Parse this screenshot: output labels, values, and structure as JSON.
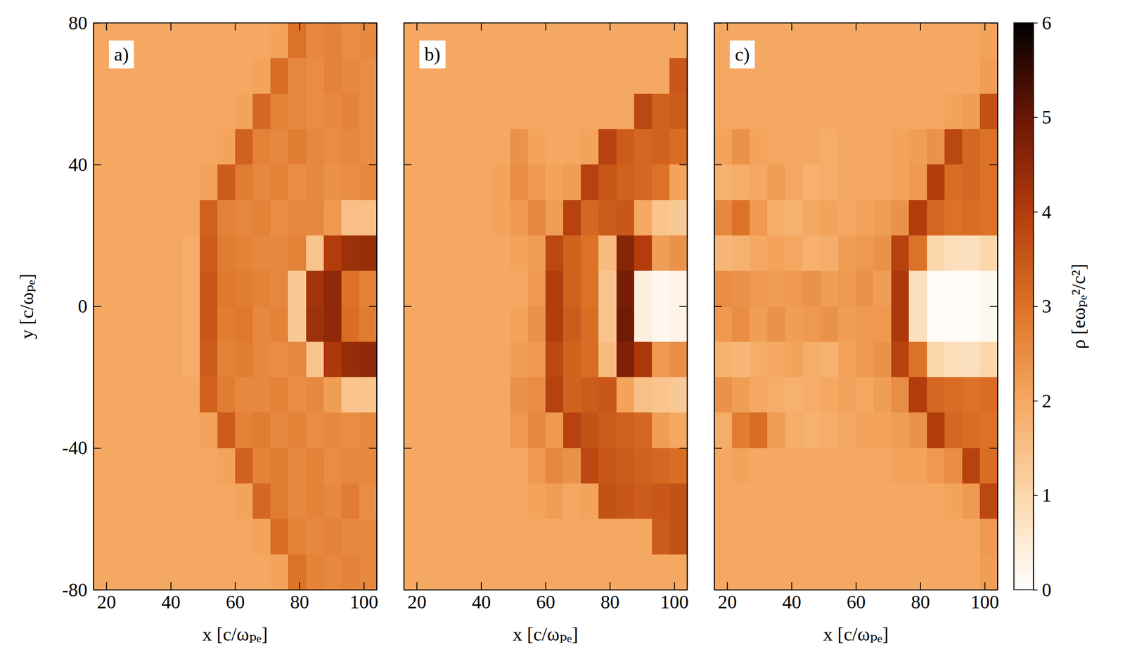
{
  "chart_data": [
    {
      "type": "heatmap",
      "title": "a)",
      "xlabel": "x [c/ωₚₑ]",
      "ylabel": "y [c/ωₚₑ]",
      "xlim": [
        16,
        104
      ],
      "ylim": [
        -80,
        80
      ],
      "xticks": [
        20,
        40,
        60,
        80,
        100
      ],
      "yticks": [
        -80,
        -40,
        0,
        40,
        80
      ],
      "x": [
        18.75,
        24.25,
        29.75,
        35.25,
        40.75,
        46.25,
        51.75,
        57.25,
        62.75,
        68.25,
        73.75,
        79.25,
        84.75,
        90.25,
        95.75,
        101.25
      ],
      "y": [
        75,
        65,
        55,
        45,
        35,
        25,
        15,
        5,
        -5,
        -15,
        -25,
        -35,
        -45,
        -55,
        -65,
        -75
      ],
      "values": [
        [
          2.0,
          2.0,
          2.0,
          2.0,
          2.0,
          2.0,
          2.0,
          2.0,
          2.0,
          2.0,
          2.1,
          3.0,
          2.6,
          2.7,
          2.5,
          2.6
        ],
        [
          2.0,
          2.0,
          2.0,
          2.0,
          2.0,
          2.0,
          2.0,
          2.0,
          2.0,
          2.1,
          3.1,
          2.6,
          2.5,
          2.7,
          2.6,
          2.5
        ],
        [
          2.0,
          2.0,
          2.0,
          2.0,
          2.0,
          2.0,
          2.0,
          2.0,
          2.1,
          3.2,
          2.7,
          2.6,
          2.5,
          2.6,
          2.7,
          2.5
        ],
        [
          2.0,
          2.0,
          2.0,
          2.0,
          2.0,
          2.0,
          2.0,
          2.1,
          3.3,
          2.7,
          2.6,
          2.8,
          2.6,
          2.5,
          2.6,
          2.5
        ],
        [
          2.0,
          2.0,
          2.0,
          2.0,
          2.0,
          2.0,
          2.1,
          3.4,
          2.8,
          2.6,
          2.7,
          2.5,
          2.6,
          2.4,
          2.5,
          2.6
        ],
        [
          2.0,
          2.0,
          2.0,
          2.0,
          2.0,
          2.0,
          3.3,
          2.7,
          2.6,
          2.7,
          2.5,
          2.6,
          2.6,
          2.3,
          1.5,
          1.5
        ],
        [
          2.0,
          2.0,
          2.0,
          2.0,
          2.0,
          1.9,
          3.4,
          2.8,
          2.7,
          2.6,
          2.6,
          2.7,
          1.4,
          4.0,
          4.3,
          4.4
        ],
        [
          2.0,
          2.0,
          2.0,
          2.0,
          2.0,
          1.9,
          3.5,
          2.9,
          2.8,
          2.7,
          2.6,
          1.3,
          4.2,
          4.5,
          3.0,
          2.7
        ],
        [
          2.0,
          2.0,
          2.0,
          2.0,
          2.0,
          1.9,
          3.5,
          2.8,
          2.9,
          2.6,
          2.7,
          1.3,
          4.3,
          4.5,
          3.1,
          2.8
        ],
        [
          2.0,
          2.0,
          2.0,
          2.0,
          2.0,
          1.9,
          3.4,
          2.7,
          2.8,
          2.6,
          2.5,
          2.6,
          1.4,
          4.1,
          4.4,
          4.5
        ],
        [
          2.0,
          2.0,
          2.0,
          2.0,
          2.0,
          2.0,
          3.3,
          2.8,
          2.6,
          2.6,
          2.7,
          2.5,
          2.6,
          2.2,
          1.4,
          1.4
        ],
        [
          2.0,
          2.0,
          2.0,
          2.0,
          2.0,
          2.0,
          2.1,
          3.4,
          2.7,
          2.8,
          2.6,
          2.7,
          2.5,
          2.6,
          2.5,
          2.6
        ],
        [
          2.0,
          2.0,
          2.0,
          2.0,
          2.0,
          2.0,
          2.0,
          2.1,
          3.3,
          2.7,
          2.8,
          2.6,
          2.7,
          2.5,
          2.6,
          2.6
        ],
        [
          2.0,
          2.0,
          2.0,
          2.0,
          2.0,
          2.0,
          2.0,
          2.0,
          2.1,
          3.2,
          2.8,
          2.6,
          2.7,
          2.6,
          2.8,
          2.5
        ],
        [
          2.0,
          2.0,
          2.0,
          2.0,
          2.0,
          2.0,
          2.0,
          2.0,
          2.0,
          2.1,
          3.1,
          2.7,
          2.6,
          2.7,
          2.6,
          2.6
        ],
        [
          2.0,
          2.0,
          2.0,
          2.0,
          2.0,
          2.0,
          2.0,
          2.0,
          2.0,
          2.0,
          2.1,
          3.0,
          2.7,
          2.6,
          2.7,
          2.6
        ]
      ]
    },
    {
      "type": "heatmap",
      "title": "b)",
      "xlabel": "x [c/ωₚₑ]",
      "tick_labels": "x",
      "xlim": [
        16,
        104
      ],
      "ylim": [
        -80,
        80
      ],
      "xticks": [
        20,
        40,
        60,
        80,
        100
      ],
      "yticks": [
        -80,
        -40,
        0,
        40,
        80
      ],
      "x": [
        18.75,
        24.25,
        29.75,
        35.25,
        40.75,
        46.25,
        51.75,
        57.25,
        62.75,
        68.25,
        73.75,
        79.25,
        84.75,
        90.25,
        95.75,
        101.25
      ],
      "y": [
        75,
        65,
        55,
        45,
        35,
        25,
        15,
        5,
        -5,
        -15,
        -25,
        -35,
        -45,
        -55,
        -65,
        -75
      ],
      "values": [
        [
          2.0,
          2.0,
          2.0,
          2.0,
          2.0,
          2.0,
          2.0,
          2.0,
          2.0,
          2.0,
          2.0,
          2.0,
          2.0,
          2.0,
          2.0,
          2.0
        ],
        [
          2.0,
          2.0,
          2.0,
          2.0,
          2.0,
          2.0,
          2.0,
          2.0,
          2.0,
          2.0,
          2.0,
          2.0,
          2.0,
          2.0,
          2.0,
          3.5
        ],
        [
          2.0,
          2.0,
          2.0,
          2.0,
          2.0,
          2.0,
          2.0,
          2.0,
          2.0,
          2.0,
          2.0,
          2.0,
          2.0,
          3.8,
          3.3,
          3.4
        ],
        [
          2.0,
          2.0,
          2.0,
          2.0,
          2.0,
          2.0,
          2.4,
          2.1,
          2.0,
          2.0,
          2.1,
          3.9,
          3.4,
          3.2,
          3.3,
          3.1
        ],
        [
          2.0,
          2.0,
          2.0,
          2.0,
          2.0,
          2.1,
          2.5,
          2.3,
          2.1,
          2.2,
          3.9,
          3.5,
          3.3,
          3.2,
          3.0,
          2.1
        ],
        [
          2.0,
          2.0,
          2.0,
          2.0,
          2.0,
          2.1,
          2.3,
          2.6,
          2.2,
          3.9,
          3.2,
          3.4,
          3.5,
          2.0,
          1.4,
          1.3
        ],
        [
          2.0,
          2.0,
          2.0,
          2.0,
          2.0,
          2.0,
          2.1,
          2.2,
          3.8,
          3.3,
          3.0,
          1.6,
          4.6,
          4.0,
          2.2,
          2.4
        ],
        [
          2.0,
          2.0,
          2.0,
          2.0,
          2.0,
          2.0,
          2.0,
          2.3,
          4.0,
          3.3,
          3.0,
          1.4,
          4.8,
          0.4,
          0.2,
          0.3
        ],
        [
          2.0,
          2.0,
          2.0,
          2.0,
          2.0,
          2.0,
          2.1,
          2.4,
          4.0,
          3.4,
          3.1,
          1.4,
          4.9,
          0.4,
          0.2,
          0.3
        ],
        [
          2.0,
          2.0,
          2.0,
          2.0,
          2.0,
          2.0,
          2.2,
          2.3,
          3.8,
          3.3,
          3.1,
          1.6,
          4.7,
          4.1,
          2.3,
          2.5
        ],
        [
          2.0,
          2.0,
          2.0,
          2.0,
          2.0,
          2.0,
          2.4,
          2.5,
          3.9,
          3.3,
          3.4,
          3.5,
          2.1,
          1.5,
          1.4,
          1.3
        ],
        [
          2.0,
          2.0,
          2.0,
          2.0,
          2.0,
          2.0,
          2.3,
          2.6,
          2.3,
          3.9,
          3.6,
          3.4,
          3.3,
          3.2,
          2.2,
          2.0
        ],
        [
          2.0,
          2.0,
          2.0,
          2.0,
          2.0,
          2.0,
          2.0,
          2.3,
          2.6,
          2.4,
          3.8,
          3.5,
          3.4,
          3.3,
          3.2,
          3.1
        ],
        [
          2.0,
          2.0,
          2.0,
          2.0,
          2.0,
          2.0,
          2.0,
          2.1,
          2.2,
          2.0,
          2.1,
          3.6,
          3.5,
          3.4,
          3.5,
          3.6
        ],
        [
          2.0,
          2.0,
          2.0,
          2.0,
          2.0,
          2.0,
          2.0,
          2.0,
          2.0,
          2.0,
          2.0,
          2.0,
          2.0,
          2.0,
          3.4,
          3.6
        ],
        [
          2.0,
          2.0,
          2.0,
          2.0,
          2.0,
          2.0,
          2.0,
          2.0,
          2.0,
          2.0,
          2.0,
          2.0,
          2.0,
          2.0,
          2.0,
          2.0
        ]
      ]
    },
    {
      "type": "heatmap",
      "title": "c)",
      "xlabel": "x [c/ωₚₑ]",
      "tick_labels": "x",
      "xlim": [
        16,
        104
      ],
      "ylim": [
        -80,
        80
      ],
      "xticks": [
        20,
        40,
        60,
        80,
        100
      ],
      "yticks": [
        -80,
        -40,
        0,
        40,
        80
      ],
      "x": [
        18.75,
        24.25,
        29.75,
        35.25,
        40.75,
        46.25,
        51.75,
        57.25,
        62.75,
        68.25,
        73.75,
        79.25,
        84.75,
        90.25,
        95.75,
        101.25
      ],
      "y": [
        75,
        65,
        55,
        45,
        35,
        25,
        15,
        5,
        -5,
        -15,
        -25,
        -35,
        -45,
        -55,
        -65,
        -75
      ],
      "values": [
        [
          2.0,
          2.0,
          2.0,
          2.0,
          2.0,
          2.0,
          2.0,
          2.0,
          2.0,
          2.0,
          2.0,
          2.0,
          2.0,
          2.0,
          2.0,
          2.1
        ],
        [
          2.0,
          2.0,
          2.0,
          2.0,
          2.0,
          2.0,
          2.0,
          2.0,
          2.0,
          2.0,
          2.0,
          2.0,
          2.0,
          2.0,
          2.0,
          2.2
        ],
        [
          2.0,
          2.0,
          2.0,
          2.0,
          2.0,
          2.0,
          2.0,
          2.0,
          2.0,
          2.0,
          2.0,
          2.0,
          2.0,
          2.1,
          2.2,
          3.6
        ],
        [
          2.1,
          2.4,
          2.1,
          2.0,
          2.0,
          2.0,
          1.9,
          2.0,
          2.0,
          2.0,
          2.1,
          2.2,
          2.4,
          3.8,
          3.2,
          3.0
        ],
        [
          1.8,
          1.9,
          2.0,
          2.2,
          2.0,
          1.8,
          1.9,
          2.0,
          2.0,
          2.0,
          2.1,
          2.3,
          4.0,
          3.1,
          3.2,
          3.0
        ],
        [
          2.6,
          3.0,
          2.3,
          1.9,
          1.8,
          2.0,
          2.1,
          2.0,
          2.1,
          2.2,
          2.4,
          4.0,
          3.2,
          3.0,
          3.1,
          3.0
        ],
        [
          1.7,
          1.8,
          2.0,
          2.1,
          2.0,
          1.8,
          1.9,
          2.2,
          2.3,
          2.4,
          3.9,
          3.0,
          1.0,
          0.8,
          0.8,
          1.0
        ],
        [
          2.5,
          2.4,
          2.3,
          2.2,
          2.3,
          2.4,
          2.2,
          2.3,
          2.4,
          2.2,
          4.1,
          0.8,
          0.1,
          0.1,
          0.1,
          0.2
        ],
        [
          2.3,
          2.5,
          2.2,
          2.4,
          2.2,
          2.3,
          2.4,
          2.2,
          2.3,
          2.3,
          4.1,
          0.8,
          0.1,
          0.1,
          0.1,
          0.2
        ],
        [
          1.8,
          1.7,
          1.9,
          2.0,
          2.1,
          1.9,
          1.8,
          2.1,
          2.3,
          2.4,
          3.9,
          3.0,
          1.0,
          0.8,
          0.8,
          1.0
        ],
        [
          2.4,
          2.2,
          2.0,
          1.9,
          1.8,
          1.9,
          2.0,
          2.1,
          2.0,
          2.2,
          2.5,
          4.0,
          3.2,
          3.1,
          3.0,
          3.1
        ],
        [
          1.9,
          2.8,
          3.1,
          2.2,
          1.9,
          1.8,
          1.9,
          2.0,
          2.1,
          2.1,
          2.2,
          2.4,
          4.0,
          3.2,
          3.1,
          3.0
        ],
        [
          2.0,
          2.1,
          2.0,
          2.0,
          2.0,
          2.0,
          2.0,
          2.0,
          2.0,
          2.0,
          2.1,
          2.1,
          2.3,
          2.5,
          3.9,
          3.1
        ],
        [
          2.0,
          2.0,
          2.0,
          2.0,
          2.0,
          2.0,
          2.0,
          2.0,
          2.0,
          2.0,
          2.0,
          2.0,
          2.0,
          2.1,
          2.3,
          3.8
        ],
        [
          2.0,
          2.0,
          2.0,
          2.0,
          2.0,
          2.0,
          2.0,
          2.0,
          2.0,
          2.0,
          2.0,
          2.0,
          2.0,
          2.0,
          2.0,
          2.3
        ],
        [
          2.0,
          2.0,
          2.0,
          2.0,
          2.0,
          2.0,
          2.0,
          2.0,
          2.0,
          2.0,
          2.0,
          2.0,
          2.0,
          2.0,
          2.0,
          2.2
        ]
      ],
      "colorbar": {
        "label": "ρ [eωₚₑ²/c²]",
        "range": [
          0,
          6
        ],
        "ticks": [
          0,
          1,
          2,
          3,
          4,
          5,
          6
        ]
      }
    }
  ]
}
